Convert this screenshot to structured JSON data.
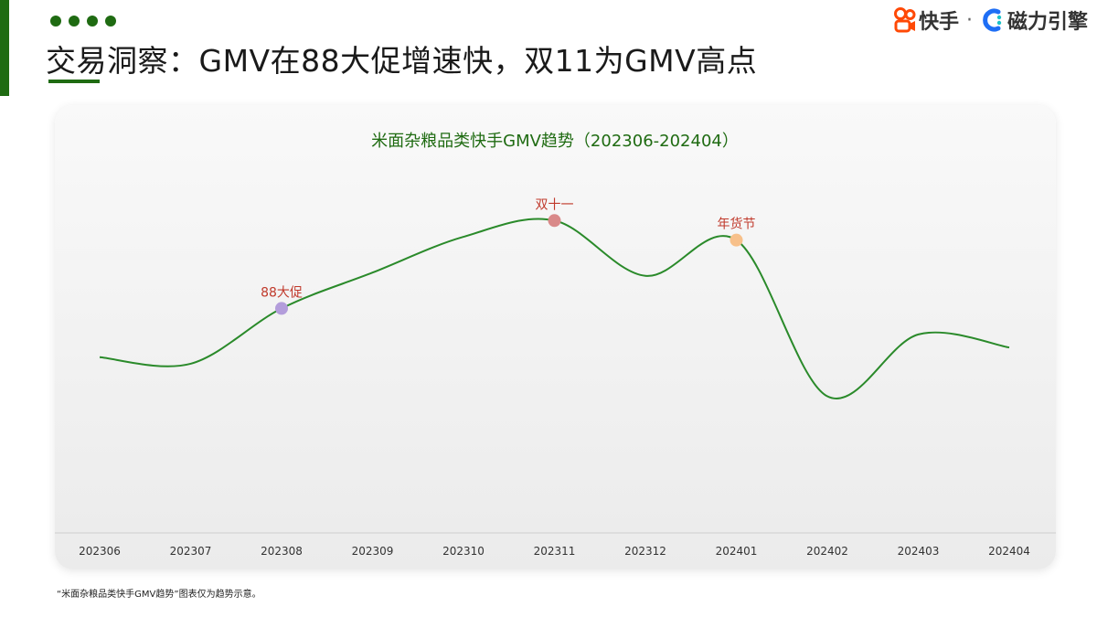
{
  "header": {
    "title": "交易洞察：GMV在88大促增速快，双11为GMV高点",
    "brand_kuaishou": "快手",
    "brand_separator": "·",
    "brand_cili": "磁力引擎"
  },
  "footnote": "“米面杂粮品类快手GMV趋势”图表仅为趋势示意。",
  "colors": {
    "accent_green": "#1f6b12",
    "line_green": "#2a8a2a",
    "annotation_red": "#c0392b",
    "brand_orange": "#ff4906",
    "brand_blue": "#1e6ef5"
  },
  "chart_data": {
    "type": "line",
    "title": "米面杂粮品类快手GMV趋势（202306-202404）",
    "categories": [
      "202306",
      "202307",
      "202308",
      "202309",
      "202310",
      "202311",
      "202312",
      "202401",
      "202402",
      "202403",
      "202404"
    ],
    "series": [
      {
        "values": [
          45,
          43,
          60,
          71,
          82,
          87,
          70,
          81,
          33,
          52,
          48
        ]
      }
    ],
    "ylim": [
      0,
      100
    ],
    "y_axis_shown": false,
    "grid": false,
    "legend": "none",
    "annotations": [
      {
        "label": "88大促",
        "category": "202308",
        "value": 60,
        "color": "#b39ddb"
      },
      {
        "label": "双十一",
        "category": "202311",
        "value": 87,
        "color": "#d98989"
      },
      {
        "label": "年货节",
        "category": "202401",
        "value": 81,
        "color": "#f7c08a"
      }
    ]
  }
}
